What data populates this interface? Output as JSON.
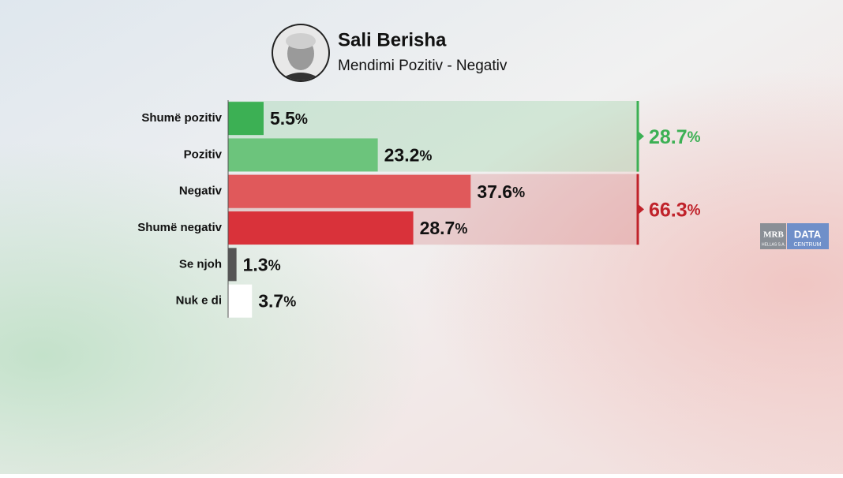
{
  "chart_data": {
    "type": "bar",
    "orientation": "horizontal",
    "title": "Sali Berisha",
    "subtitle": "Mendimi Pozitiv - Negativ",
    "categories": [
      "Shumë pozitiv",
      "Pozitiv",
      "Negativ",
      "Shumë negativ",
      "Se njoh",
      "Nuk e di"
    ],
    "values": [
      5.5,
      23.2,
      37.6,
      28.7,
      1.3,
      3.7
    ],
    "value_labels": [
      "5.5%",
      "23.2%",
      "37.6%",
      "28.7%",
      "1.3%",
      "3.7%"
    ],
    "colors": [
      "#3cb054",
      "#6cc47c",
      "#e0595b",
      "#d9323a",
      "#555555",
      "#ffffff"
    ],
    "xlim": [
      0,
      63.5
    ],
    "totals": [
      {
        "value": 28.7,
        "label": "28.7%",
        "color": "#3cb054"
      },
      {
        "value": 66.3,
        "label": "66.3%",
        "color": "#c0222a"
      }
    ]
  },
  "logo": {
    "left": "MRB",
    "left_sub": "HELLAS S.A.",
    "right": "DATA",
    "right_sub": "CENTRUM"
  }
}
